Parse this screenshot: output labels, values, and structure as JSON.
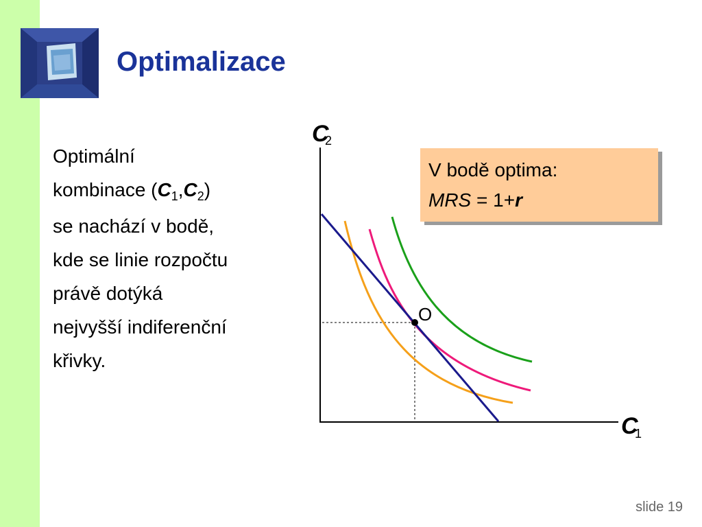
{
  "slide": {
    "title": "Optimalizace",
    "number_label": "slide 19"
  },
  "body": {
    "lines": [
      "Optimální",
      "kombinace (",
      "se nachází v bodě,",
      "kde se linie rozpočtu",
      "právě dotýká",
      "nejvyšší indiferenční",
      "křivky."
    ],
    "c_letter": "C",
    "sub1": "1",
    "sub2": "2",
    "comma": ",",
    "close_paren": ")"
  },
  "callout": {
    "line1": "V bodě optima:",
    "mrs": "MRS",
    "equals": " = 1+",
    "r": "r"
  },
  "diagram": {
    "y_axis_letter": "C",
    "y_axis_sub": "2",
    "x_axis_letter": "C",
    "x_axis_sub": "1",
    "optimum_label": "O",
    "colors": {
      "budget_line": "#1a1a8c",
      "curve_low": "#f5a01a",
      "curve_mid": "#ee1a7a",
      "curve_high": "#1aa01a",
      "sidebar": "#ccffaa",
      "title": "#1a3399",
      "callout": "#ffcc99"
    }
  }
}
